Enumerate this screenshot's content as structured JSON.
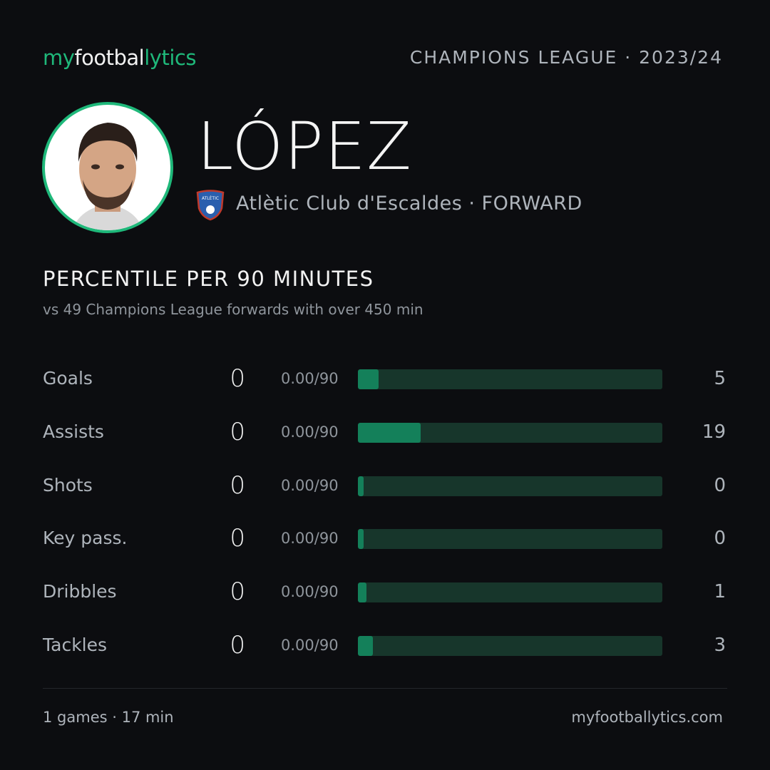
{
  "header": {
    "brand_my": "my",
    "brand_football": "footbal",
    "brand_lytics": "lytics",
    "competition": "CHAMPIONS LEAGUE · 2023/24"
  },
  "player": {
    "name": "LÓPEZ",
    "badge_text": "ATLÈTIC",
    "club_position": "Atlètic Club d'Escaldes · FORWARD"
  },
  "section": {
    "title": "PERCENTILE  PER 90 MINUTES",
    "subtitle": "vs 49 Champions League forwards with over 450 min"
  },
  "stats": [
    {
      "label": "Goals",
      "value": "0",
      "rate": "0.00/90",
      "percentile": 5
    },
    {
      "label": "Assists",
      "value": "0",
      "rate": "0.00/90",
      "percentile": 19
    },
    {
      "label": "Shots",
      "value": "0",
      "rate": "0.00/90",
      "percentile": 0
    },
    {
      "label": "Key pass.",
      "value": "0",
      "rate": "0.00/90",
      "percentile": 0
    },
    {
      "label": "Dribbles",
      "value": "0",
      "rate": "0.00/90",
      "percentile": 1
    },
    {
      "label": "Tackles",
      "value": "0",
      "rate": "0.00/90",
      "percentile": 3
    }
  ],
  "footer": {
    "summary": "1 games · 17 min",
    "site": "myfootballytics.com"
  }
}
